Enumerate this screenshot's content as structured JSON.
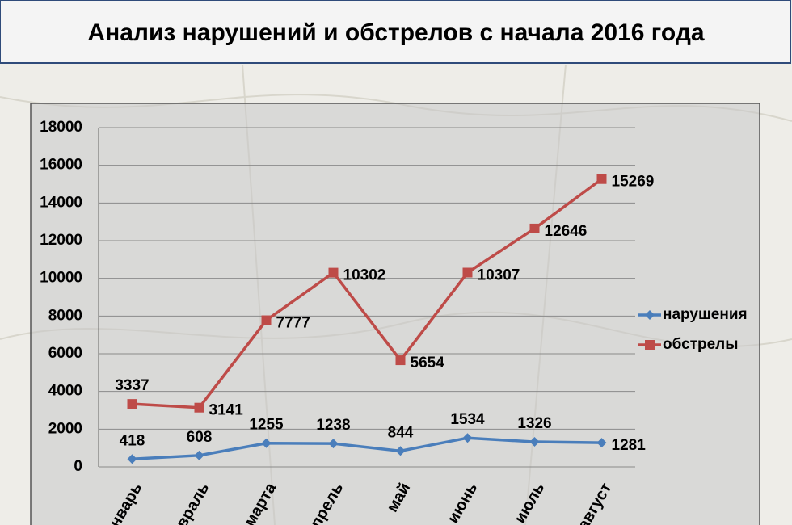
{
  "chart_data": {
    "type": "line",
    "title": "Анализ нарушений и обстрелов с начала 2016 года",
    "categories": [
      "январь",
      "февраль",
      "марта",
      "апрель",
      "май",
      "июнь",
      "июль",
      "август"
    ],
    "series": [
      {
        "name": "нарушения",
        "color": "#4a7ebb",
        "marker": "diamond",
        "values": [
          418,
          608,
          1255,
          1238,
          844,
          1534,
          1326,
          1281
        ]
      },
      {
        "name": "обстрелы",
        "color": "#be4b48",
        "marker": "square",
        "values": [
          3337,
          3141,
          7777,
          10302,
          5654,
          10307,
          12646,
          15269
        ]
      }
    ],
    "ylim": [
      0,
      18000
    ],
    "yticks": [
      0,
      2000,
      4000,
      6000,
      8000,
      10000,
      12000,
      14000,
      16000,
      18000
    ],
    "grid": true,
    "legend": "right"
  }
}
